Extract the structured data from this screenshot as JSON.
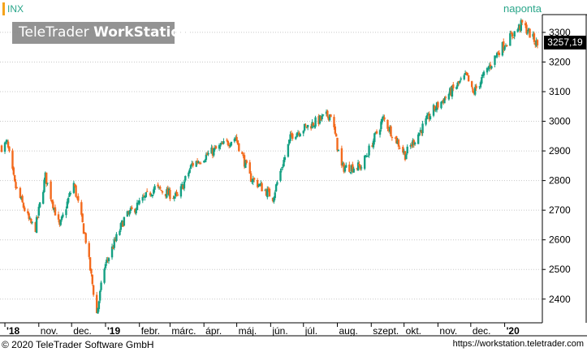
{
  "watermark": {
    "brand": "TeleTrader",
    "product": "WorkStation"
  },
  "symbol": "INX",
  "interval": "naponta",
  "last_value": "3257,19",
  "footer": {
    "copyright": "© 2020 TeleTrader Software GmbH",
    "url": "https://workstation.teletrader.com"
  },
  "colors": {
    "up": "#14a083",
    "down": "#f36a1d",
    "grid": "#c8c8c8",
    "accent": "#f5a31a",
    "symbol": "#2aa68a"
  },
  "chart_data": {
    "type": "candlestick",
    "title": "",
    "xlabel": "",
    "ylabel": "",
    "ylim": [
      2320,
      3360
    ],
    "y_ticks": [
      2400,
      2500,
      2600,
      2700,
      2800,
      2900,
      3000,
      3100,
      3200,
      3300
    ],
    "x_ticks": [
      "'18",
      "nov.",
      "dec.",
      "'19",
      "febr.",
      "márc.",
      "ápr.",
      "máj.",
      "jún.",
      "júl.",
      "aug.",
      "szept.",
      "okt.",
      "nov.",
      "dec.",
      "'20"
    ],
    "x_tick_dates": [
      "2018-10-01",
      "2018-11-01",
      "2018-12-01",
      "2019-01-01",
      "2019-02-01",
      "2019-03-01",
      "2019-04-01",
      "2019-05-01",
      "2019-06-01",
      "2019-07-01",
      "2019-08-01",
      "2019-09-01",
      "2019-10-01",
      "2019-11-01",
      "2019-12-01",
      "2020-01-01"
    ],
    "date_range": [
      "2018-09-28",
      "2020-01-31"
    ],
    "series_close": [
      {
        "date": "2018-09-28",
        "value": 2914
      },
      {
        "date": "2018-10-03",
        "value": 2925
      },
      {
        "date": "2018-10-10",
        "value": 2786
      },
      {
        "date": "2018-10-12",
        "value": 2767
      },
      {
        "date": "2018-10-24",
        "value": 2657
      },
      {
        "date": "2018-10-29",
        "value": 2641
      },
      {
        "date": "2018-11-07",
        "value": 2814
      },
      {
        "date": "2018-11-20",
        "value": 2642
      },
      {
        "date": "2018-11-30",
        "value": 2760
      },
      {
        "date": "2018-12-03",
        "value": 2790
      },
      {
        "date": "2018-12-14",
        "value": 2600
      },
      {
        "date": "2018-12-24",
        "value": 2351
      },
      {
        "date": "2018-12-31",
        "value": 2507
      },
      {
        "date": "2019-01-18",
        "value": 2670
      },
      {
        "date": "2019-02-15",
        "value": 2775
      },
      {
        "date": "2019-03-08",
        "value": 2743
      },
      {
        "date": "2019-03-21",
        "value": 2854
      },
      {
        "date": "2019-04-30",
        "value": 2946
      },
      {
        "date": "2019-05-13",
        "value": 2812
      },
      {
        "date": "2019-06-03",
        "value": 2744
      },
      {
        "date": "2019-06-20",
        "value": 2954
      },
      {
        "date": "2019-07-26",
        "value": 3025
      },
      {
        "date": "2019-08-05",
        "value": 2844
      },
      {
        "date": "2019-08-23",
        "value": 2847
      },
      {
        "date": "2019-09-12",
        "value": 3009
      },
      {
        "date": "2019-10-02",
        "value": 2887
      },
      {
        "date": "2019-10-28",
        "value": 3039
      },
      {
        "date": "2019-11-27",
        "value": 3153
      },
      {
        "date": "2019-12-03",
        "value": 3093
      },
      {
        "date": "2019-12-27",
        "value": 3240
      },
      {
        "date": "2020-01-17",
        "value": 3329
      },
      {
        "date": "2020-01-24",
        "value": 3295
      },
      {
        "date": "2020-01-31",
        "value": 3257
      }
    ]
  }
}
